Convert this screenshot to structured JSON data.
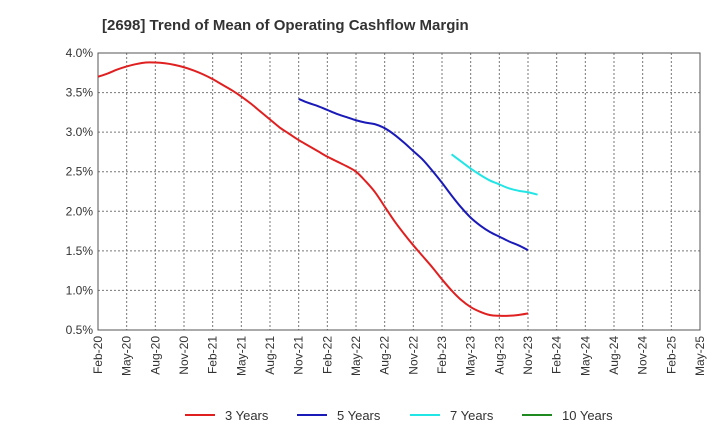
{
  "chart_data": {
    "type": "line",
    "title": "[2698]  Trend of Mean of Operating Cashflow Margin",
    "xlabel": "",
    "ylabel": "",
    "ylim": [
      0.5,
      4.0
    ],
    "y_ticks": [
      "4.0%",
      "3.5%",
      "3.0%",
      "2.5%",
      "2.0%",
      "1.5%",
      "1.0%",
      "0.5%"
    ],
    "y_tick_values": [
      4.0,
      3.5,
      3.0,
      2.5,
      2.0,
      1.5,
      1.0,
      0.5
    ],
    "x_ticks": [
      "Feb-20",
      "May-20",
      "Aug-20",
      "Nov-20",
      "Feb-21",
      "May-21",
      "Aug-21",
      "Nov-21",
      "Feb-22",
      "May-22",
      "Aug-22",
      "Nov-22",
      "Feb-23",
      "May-23",
      "Aug-23",
      "Nov-23",
      "Feb-24",
      "May-24",
      "Aug-24",
      "Nov-24",
      "Feb-25",
      "May-25"
    ],
    "grid": true,
    "legend_position": "bottom",
    "series": [
      {
        "name": "3 Years",
        "color": "#e02020",
        "start_index": 0,
        "values": [
          3.7,
          3.74,
          3.79,
          3.83,
          3.86,
          3.88,
          3.88,
          3.87,
          3.85,
          3.82,
          3.78,
          3.73,
          3.67,
          3.6,
          3.53,
          3.45,
          3.36,
          3.26,
          3.16,
          3.06,
          2.98,
          2.9,
          2.83,
          2.76,
          2.69,
          2.63,
          2.57,
          2.5,
          2.38,
          2.24,
          2.06,
          1.88,
          1.72,
          1.57,
          1.43,
          1.29,
          1.14,
          1.0,
          0.88,
          0.79,
          0.73,
          0.69,
          0.68,
          0.68,
          0.69,
          0.71
        ]
      },
      {
        "name": "5 Years",
        "color": "#1a1ab8",
        "start_index": 21,
        "values": [
          3.42,
          3.37,
          3.33,
          3.28,
          3.23,
          3.19,
          3.15,
          3.12,
          3.1,
          3.05,
          2.97,
          2.87,
          2.76,
          2.65,
          2.51,
          2.36,
          2.2,
          2.05,
          1.92,
          1.82,
          1.74,
          1.68,
          1.62,
          1.57,
          1.51
        ]
      },
      {
        "name": "7 Years",
        "color": "#22e5e5",
        "start_index": 37,
        "values": [
          2.72,
          2.63,
          2.54,
          2.46,
          2.39,
          2.34,
          2.29,
          2.26,
          2.24,
          2.21
        ]
      },
      {
        "name": "10 Years",
        "color": "#1f8a1f",
        "start_index": 0,
        "values": []
      }
    ]
  }
}
